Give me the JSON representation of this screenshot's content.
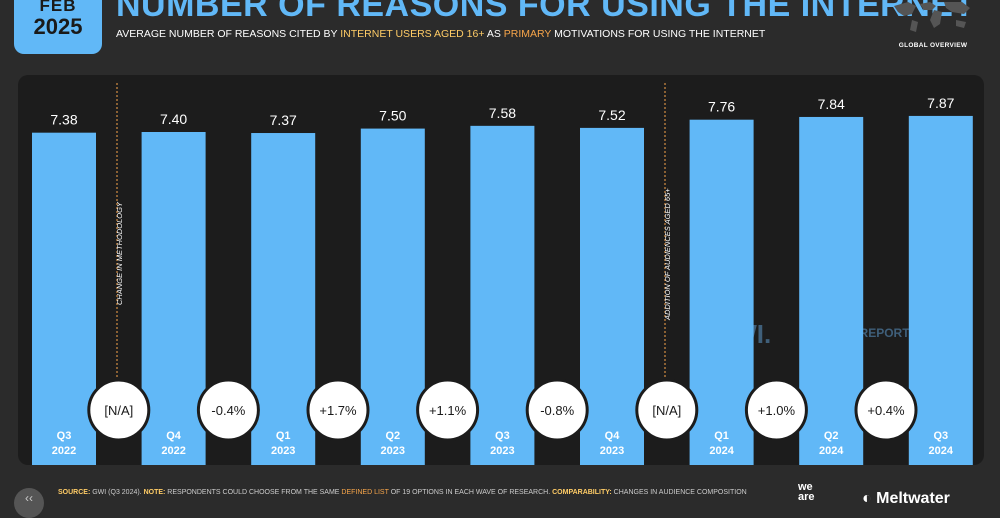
{
  "header": {
    "month": "FEB",
    "year": "2025",
    "title": "NUMBER OF REASONS FOR USING THE INTERNET",
    "subtitle_parts": [
      "AVERAGE NUMBER OF REASONS CITED BY ",
      "INTERNET USERS AGED 16+",
      " AS ",
      "PRIMARY",
      " MOTIVATIONS FOR USING THE INTERNET"
    ],
    "map_label": "GLOBAL OVERVIEW"
  },
  "chart_data": {
    "type": "bar",
    "categories": [
      "Q3\n2022",
      "Q4\n2022",
      "Q1\n2023",
      "Q2\n2023",
      "Q3\n2023",
      "Q4\n2023",
      "Q1\n2024",
      "Q2\n2024",
      "Q3\n2024"
    ],
    "values": [
      7.38,
      7.4,
      7.37,
      7.5,
      7.58,
      7.52,
      7.76,
      7.84,
      7.87
    ],
    "data_labels": [
      "7.38",
      "7.40",
      "7.37",
      "7.50",
      "7.58",
      "7.52",
      "7.76",
      "7.84",
      "7.87"
    ],
    "changes": [
      "[N/A]",
      "-0.4%",
      "+1.7%",
      "+1.1%",
      "-0.8%",
      "[N/A]",
      "+1.0%",
      "+0.4%"
    ],
    "annotations": [
      "CHANGE IN METHODOLOGY",
      "ADDITION OF AUDIENCES AGED 65+"
    ],
    "ylim": [
      0,
      9.5
    ],
    "bar_color": "#61b8f7",
    "annotation_color": "#f7a54a",
    "grid": false
  },
  "watermark": {
    "gwi": "GWI.",
    "datareportal": "DATAREPORTAL"
  },
  "footer": {
    "source_key": "SOURCE:",
    "source_val": " GWI (Q3 2024). ",
    "note_key": "NOTE:",
    "note_val": " RESPONDENTS COULD CHOOSE FROM THE SAME ",
    "defined": "DEFINED LIST",
    "note_val2": " OF 19 OPTIONS IN EACH WAVE OF RESEARCH. ",
    "comp_key": "COMPARABILITY:",
    "comp_val": " CHANGES IN AUDIENCE COMPOSITION"
  },
  "brand": {
    "weare1": "we",
    "weare2": "are",
    "meltwater": "Meltwater"
  }
}
